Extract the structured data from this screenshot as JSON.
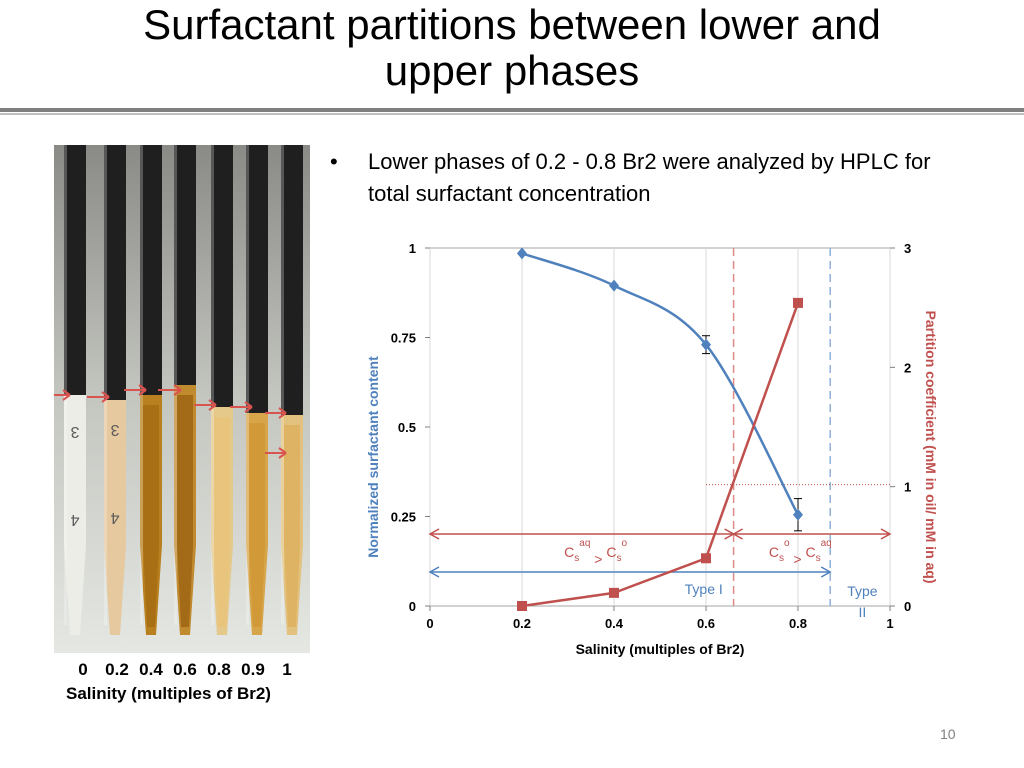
{
  "slide": {
    "title_line1": "Surfactant partitions between lower and",
    "title_line2": "upper phases",
    "bullet_marker": "•",
    "bullet_text": "Lower phases of 0.2 - 0.8 Br2 were analyzed by HPLC for total surfactant concentration",
    "page_number": "10"
  },
  "photo": {
    "salinity_values": [
      "0",
      "0.2",
      "0.4",
      "0.6",
      "0.8",
      "0.9",
      "1"
    ],
    "caption": "Salinity (multiples of Br2)",
    "tube_markings": [
      "3",
      "4"
    ]
  },
  "colors": {
    "blue_series": "#4f81bd",
    "red_series": "#c0504d",
    "oil_phase": "#1f1f1f",
    "arrow_red": "#d9534f"
  },
  "chart_data": {
    "type": "line",
    "xlabel": "Salinity (multiples of Br2)",
    "ylabel_left": "Normalized surfactant content",
    "ylabel_right": "Partition coefficient (mM in oil/ mM in aq)",
    "xlim": [
      0,
      1
    ],
    "ylim_left": [
      0,
      1
    ],
    "ylim_right": [
      0,
      3
    ],
    "x_ticks": [
      "0",
      "0.2",
      "0.4",
      "0.6",
      "0.8",
      "1"
    ],
    "y_left_ticks": [
      "0",
      "0.25",
      "0.5",
      "0.75",
      "1"
    ],
    "y_right_ticks": [
      "0",
      "1",
      "2",
      "3"
    ],
    "series": [
      {
        "name": "Normalized surfactant content",
        "axis": "left",
        "marker": "diamond",
        "x": [
          0.2,
          0.4,
          0.6,
          0.8
        ],
        "y": [
          0.985,
          0.895,
          0.73,
          0.255
        ],
        "err": [
          0,
          0,
          0.025,
          0.045
        ]
      },
      {
        "name": "Partition coefficient",
        "axis": "right",
        "marker": "square",
        "x": [
          0.2,
          0.4,
          0.6,
          0.8
        ],
        "y": [
          0.0,
          0.11,
          0.4,
          2.54
        ]
      }
    ],
    "vlines": [
      {
        "x": 0.66,
        "color": "red"
      },
      {
        "x": 0.87,
        "color": "blue"
      }
    ],
    "annotations": {
      "red_left": {
        "base": "C",
        "sub1": "s",
        "sup1": "aq",
        "op": " > ",
        "sub2": "s",
        "sup2": "o"
      },
      "red_right": {
        "base": "C",
        "sub1": "s",
        "sup1": "o",
        "op": " > ",
        "sub2": "s",
        "sup2": "aq"
      },
      "type1": "Type I",
      "type2_line1": "Type",
      "type2_line2": "II"
    }
  }
}
